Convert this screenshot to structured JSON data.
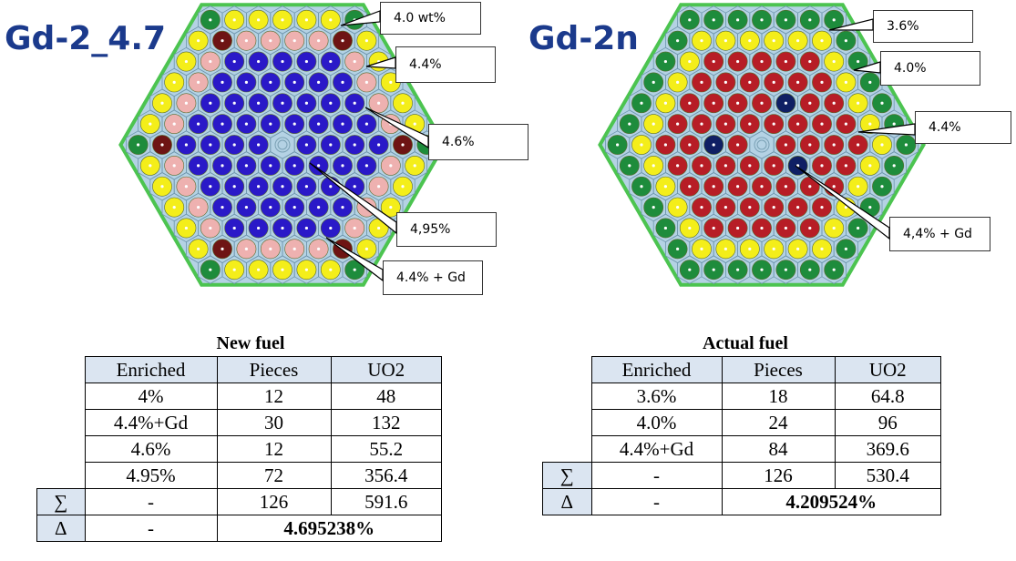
{
  "left": {
    "title": "Gd-2_4.7",
    "callouts": [
      "4.0 wt%",
      "4.4%",
      "4.6%",
      "4,95%",
      "4.4% + Gd"
    ]
  },
  "right": {
    "title": "Gd-2n",
    "callouts": [
      "3.6%",
      "4.0%",
      "4.4%",
      "4,4% + Gd"
    ]
  },
  "colors": {
    "outer": "#1e8c3c",
    "yellow": "#f4ee1a",
    "blue": "#2a19c8",
    "pink": "#eeb1b0",
    "darkred": "#6e1414",
    "red": "#b71d26",
    "navy": "#0f1f64",
    "lattice": "#b4d2e4",
    "border": "#4cc450"
  },
  "new_fuel": {
    "caption": "New fuel",
    "headers": [
      "Enriched",
      "Pieces",
      "UO2"
    ],
    "rows": [
      [
        "4%",
        "12",
        "48"
      ],
      [
        "4.4%+Gd",
        "30",
        "132"
      ],
      [
        "4.6%",
        "12",
        "55.2"
      ],
      [
        "4.95%",
        "72",
        "356.4"
      ]
    ],
    "sum_row": {
      "symbol": "∑",
      "enriched": "-",
      "pieces": "126",
      "uo2": "591.6"
    },
    "delta_row": {
      "symbol": "Δ",
      "enriched": "-",
      "value": "4.695238%"
    }
  },
  "actual_fuel": {
    "caption": "Actual fuel",
    "headers": [
      "Enriched",
      "Pieces",
      "UO2"
    ],
    "rows": [
      [
        "3.6%",
        "18",
        "64.8"
      ],
      [
        "4.0%",
        "24",
        "96"
      ],
      [
        "4.4%+Gd",
        "84",
        "369.6"
      ]
    ],
    "sum_row": {
      "symbol": "∑",
      "enriched": "-",
      "pieces": "126",
      "uo2": "530.4"
    },
    "delta_row": {
      "symbol": "Δ",
      "enriched": "-",
      "value": "4.209524%"
    }
  }
}
